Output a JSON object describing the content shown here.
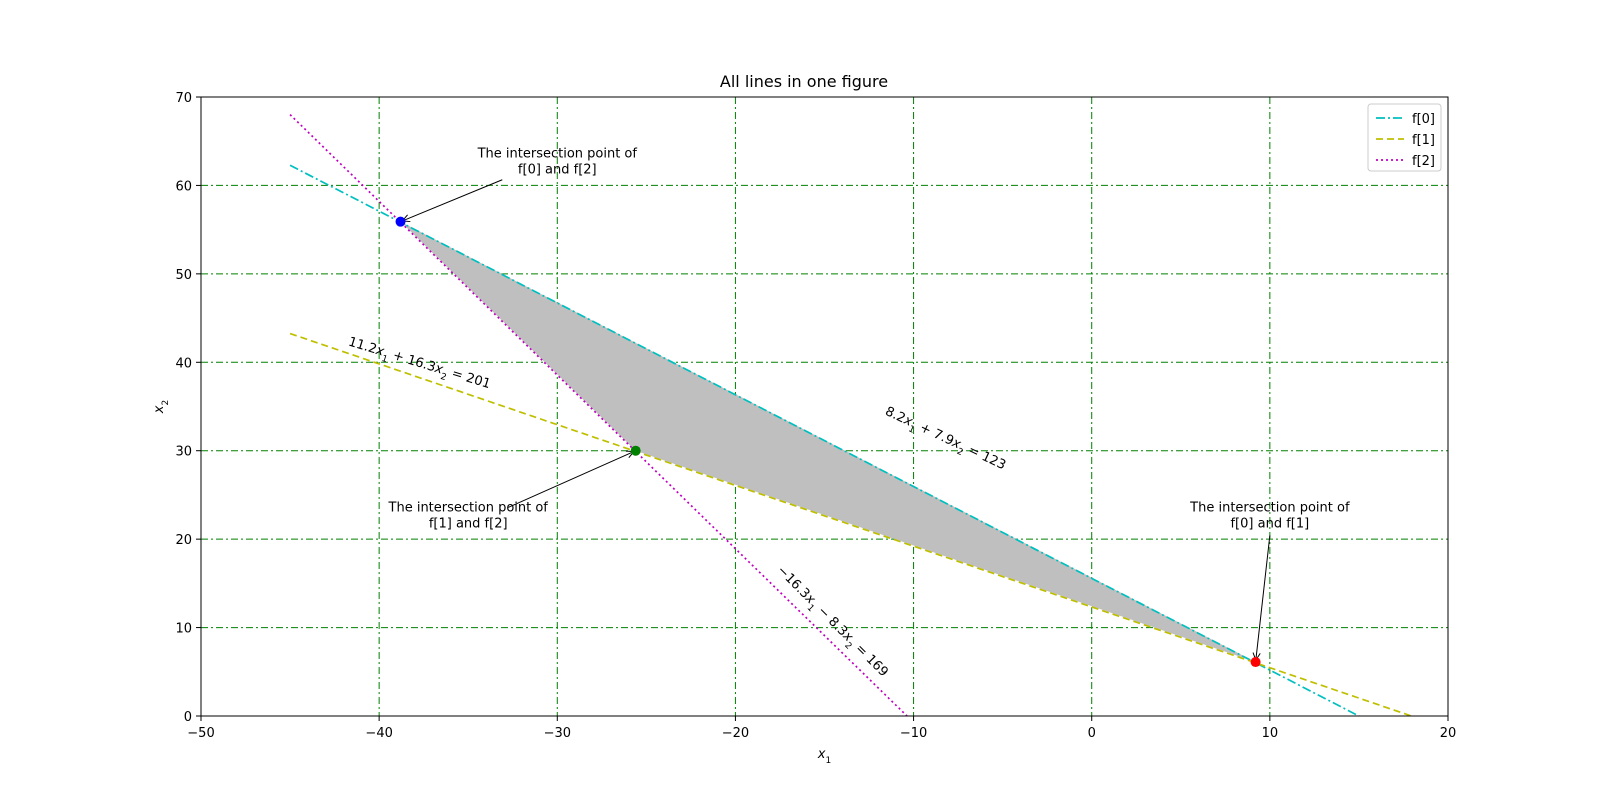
{
  "chart_data": {
    "type": "line",
    "title": "All lines in one figure",
    "xlabel": "x1",
    "ylabel": "x2",
    "xlim": [
      -50,
      20
    ],
    "ylim": [
      0,
      70
    ],
    "xticks": [
      -50,
      -40,
      -30,
      -20,
      -10,
      0,
      10,
      20
    ],
    "yticks": [
      0,
      10,
      20,
      30,
      40,
      50,
      60,
      70
    ],
    "xtick_labels": [
      "−50",
      "−40",
      "−30",
      "−20",
      "−10",
      "0",
      "10",
      "20"
    ],
    "ytick_labels": [
      "0",
      "10",
      "20",
      "30",
      "40",
      "50",
      "60",
      "70"
    ],
    "grid": true,
    "grid_color": "#008000",
    "legend_position": "top-right",
    "series": [
      {
        "name": "f[0]",
        "color": "#00bfbf",
        "style": "dashdot",
        "a": 8.2,
        "b": 7.9,
        "c": 123,
        "x": [
          -45,
          15.0
        ]
      },
      {
        "name": "f[1]",
        "color": "#bfbf00",
        "style": "dashed",
        "a": 11.2,
        "b": 16.3,
        "c": 201,
        "x": [
          -45,
          17.95
        ]
      },
      {
        "name": "f[2]",
        "color": "#bf00bf",
        "style": "dotted",
        "a": -16.3,
        "b": -8.3,
        "c": 169,
        "x": [
          -45,
          -10.37
        ]
      }
    ],
    "equation_labels": [
      {
        "series": 0,
        "pre": "8.2",
        "var1": "x",
        "mid": " + 7.9",
        "var2": "x",
        "post": " = 123",
        "x": -8.3,
        "y": 31.0,
        "angle": 25
      },
      {
        "series": 1,
        "pre": "11.2",
        "var1": "x",
        "mid": " + 16.3",
        "var2": "x",
        "post": " = 201",
        "x": -37.8,
        "y": 39.5,
        "angle": 17
      },
      {
        "series": 2,
        "pre": "−16.3",
        "var1": "x",
        "mid": " − 8.3",
        "var2": "x",
        "post": " = 169",
        "x": -14.7,
        "y": 10.4,
        "angle": 45
      }
    ],
    "intersection_points": [
      {
        "label": "f[0] and f[2]",
        "x": -38.8,
        "y": 55.9,
        "color": "#0000ff",
        "text_lines": [
          "The intersection point of",
          "f[0] and f[2]"
        ],
        "text_x": -30.0,
        "text_y": 62.0
      },
      {
        "label": "f[1] and f[2]",
        "x": -25.6,
        "y": 30.0,
        "color": "#008000",
        "text_lines": [
          "The intersection point of",
          "f[1] and f[2]"
        ],
        "text_x": -35.0,
        "text_y": 22.0
      },
      {
        "label": "f[0] and f[1]",
        "x": 9.2,
        "y": 6.1,
        "color": "#ff0000",
        "text_lines": [
          "The intersection point of",
          "f[0] and f[1]"
        ],
        "text_x": 10.0,
        "text_y": 22.0
      }
    ],
    "feasible_region": {
      "color": "#bfbfbf",
      "vertices": [
        [
          -38.8,
          55.9
        ],
        [
          -25.6,
          30.0
        ],
        [
          9.2,
          6.1
        ]
      ]
    }
  }
}
